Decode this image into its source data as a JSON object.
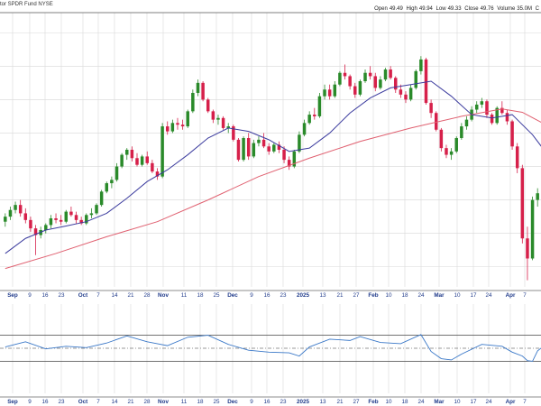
{
  "header": {
    "title": "tor SPDR Fund",
    "exchange": "NYSE",
    "open_label": "Open",
    "open_value": "49.49",
    "high_label": "High",
    "high_value": "49.94",
    "low_label": "Low",
    "low_value": "49.33",
    "close_label": "Close",
    "close_value": "49.76",
    "volume_label": "Volume",
    "volume_value": "35.0M",
    "cut_label": "C"
  },
  "colors": {
    "up": "#2a8a2a",
    "down": "#d6204a",
    "sma_fast": "#3b3b9e",
    "sma_slow": "#e06070",
    "rsi_line": "#3a78c8",
    "rsi_overbought_fill": "#3a78c8",
    "rsi_oversold_fill": "#e05078",
    "grid": "#d8d8d8",
    "axis_text": "#1f3a8a"
  },
  "chart_data": [
    {
      "type": "candlestick",
      "title": "",
      "ylim": [
        43.4,
        51.6
      ],
      "grid": true,
      "x_tick_labels": [
        "Sep",
        "9",
        "16",
        "23",
        "Oct",
        "7",
        "14",
        "21",
        "28",
        "Nov",
        "11",
        "18",
        "25",
        "Dec",
        "9",
        "16",
        "23",
        "2025",
        "13",
        "21",
        "27",
        "Feb",
        "10",
        "18",
        "24",
        "Mar",
        "10",
        "17",
        "24",
        "Apr",
        "7"
      ],
      "candles": [
        [
          45.35,
          45.6,
          45.2,
          45.5
        ],
        [
          45.5,
          45.8,
          45.4,
          45.7
        ],
        [
          45.7,
          45.95,
          45.6,
          45.85
        ],
        [
          45.85,
          46.0,
          45.5,
          45.6
        ],
        [
          45.6,
          45.75,
          45.3,
          45.4
        ],
        [
          45.4,
          45.5,
          45.05,
          45.15
        ],
        [
          45.15,
          45.25,
          44.35,
          44.95
        ],
        [
          44.95,
          45.2,
          44.85,
          45.1
        ],
        [
          45.1,
          45.3,
          45.0,
          45.25
        ],
        [
          45.25,
          45.55,
          45.15,
          45.45
        ],
        [
          45.45,
          45.6,
          45.3,
          45.4
        ],
        [
          45.4,
          45.55,
          45.25,
          45.35
        ],
        [
          45.35,
          45.7,
          45.3,
          45.65
        ],
        [
          45.65,
          45.8,
          45.5,
          45.55
        ],
        [
          45.55,
          45.65,
          45.3,
          45.4
        ],
        [
          45.4,
          45.5,
          45.25,
          45.3
        ],
        [
          45.3,
          45.6,
          45.25,
          45.55
        ],
        [
          45.55,
          45.75,
          45.45,
          45.6
        ],
        [
          45.6,
          45.9,
          45.55,
          45.85
        ],
        [
          45.85,
          46.3,
          45.8,
          46.25
        ],
        [
          46.25,
          46.55,
          46.2,
          46.5
        ],
        [
          46.5,
          46.7,
          46.35,
          46.6
        ],
        [
          46.6,
          47.1,
          46.55,
          47.0
        ],
        [
          47.0,
          47.4,
          46.95,
          47.35
        ],
        [
          47.35,
          47.55,
          47.2,
          47.5
        ],
        [
          47.5,
          47.6,
          47.15,
          47.25
        ],
        [
          47.25,
          47.4,
          47.0,
          47.05
        ],
        [
          47.05,
          47.35,
          47.0,
          47.3
        ],
        [
          47.3,
          47.45,
          47.05,
          47.1
        ],
        [
          47.1,
          47.2,
          46.8,
          46.85
        ],
        [
          46.85,
          46.95,
          46.6,
          46.7
        ],
        [
          46.7,
          48.3,
          46.65,
          48.2
        ],
        [
          48.2,
          48.35,
          47.95,
          48.05
        ],
        [
          48.05,
          48.4,
          48.0,
          48.3
        ],
        [
          48.3,
          48.45,
          48.1,
          48.25
        ],
        [
          48.25,
          48.4,
          48.1,
          48.2
        ],
        [
          48.2,
          48.7,
          48.15,
          48.65
        ],
        [
          48.65,
          49.3,
          48.6,
          49.2
        ],
        [
          49.2,
          49.6,
          49.1,
          49.5
        ],
        [
          49.5,
          49.55,
          48.95,
          49.0
        ],
        [
          49.0,
          49.05,
          48.6,
          48.65
        ],
        [
          48.65,
          48.7,
          48.3,
          48.4
        ],
        [
          48.4,
          48.55,
          48.25,
          48.45
        ],
        [
          48.45,
          48.5,
          48.1,
          48.15
        ],
        [
          48.15,
          48.3,
          48.0,
          48.2
        ],
        [
          48.2,
          48.25,
          47.75,
          47.8
        ],
        [
          47.8,
          47.85,
          47.15,
          47.2
        ],
        [
          47.2,
          47.9,
          47.15,
          47.85
        ],
        [
          47.85,
          48.0,
          47.2,
          47.3
        ],
        [
          47.3,
          47.8,
          47.25,
          47.7
        ],
        [
          47.7,
          47.9,
          47.6,
          47.8
        ],
        [
          47.8,
          48.0,
          47.55,
          47.6
        ],
        [
          47.6,
          47.7,
          47.35,
          47.45
        ],
        [
          47.45,
          47.7,
          47.4,
          47.65
        ],
        [
          47.65,
          47.75,
          47.4,
          47.5
        ],
        [
          47.5,
          47.6,
          47.1,
          47.2
        ],
        [
          47.2,
          47.3,
          46.9,
          47.0
        ],
        [
          47.0,
          47.5,
          46.95,
          47.45
        ],
        [
          47.45,
          48.05,
          47.4,
          47.95
        ],
        [
          47.95,
          48.4,
          47.9,
          48.3
        ],
        [
          48.3,
          48.65,
          48.25,
          48.55
        ],
        [
          48.55,
          48.75,
          48.4,
          48.5
        ],
        [
          48.5,
          49.2,
          48.45,
          49.1
        ],
        [
          49.1,
          49.45,
          49.0,
          49.3
        ],
        [
          49.3,
          49.45,
          49.0,
          49.1
        ],
        [
          49.1,
          49.55,
          49.05,
          49.45
        ],
        [
          49.45,
          49.85,
          49.4,
          49.8
        ],
        [
          49.8,
          50.05,
          49.6,
          49.7
        ],
        [
          49.7,
          49.75,
          49.3,
          49.4
        ],
        [
          49.4,
          49.5,
          49.05,
          49.15
        ],
        [
          49.15,
          49.6,
          49.1,
          49.55
        ],
        [
          49.55,
          49.9,
          49.5,
          49.8
        ],
        [
          49.8,
          50.0,
          49.6,
          49.7
        ],
        [
          49.7,
          49.8,
          49.25,
          49.35
        ],
        [
          49.35,
          49.7,
          49.3,
          49.6
        ],
        [
          49.6,
          49.95,
          49.55,
          49.9
        ],
        [
          49.9,
          50.0,
          49.6,
          49.65
        ],
        [
          49.65,
          49.7,
          49.2,
          49.3
        ],
        [
          49.3,
          49.45,
          49.05,
          49.15
        ],
        [
          49.15,
          49.25,
          48.9,
          49.0
        ],
        [
          49.0,
          49.45,
          48.95,
          49.35
        ],
        [
          49.35,
          49.9,
          49.3,
          49.85
        ],
        [
          49.85,
          50.3,
          49.75,
          50.2
        ],
        [
          50.2,
          50.25,
          48.85,
          48.9
        ],
        [
          48.9,
          49.0,
          48.45,
          48.6
        ],
        [
          48.6,
          48.65,
          48.05,
          48.1
        ],
        [
          48.1,
          48.15,
          47.45,
          47.55
        ],
        [
          47.55,
          47.65,
          47.25,
          47.35
        ],
        [
          47.35,
          47.55,
          47.2,
          47.45
        ],
        [
          47.45,
          47.9,
          47.4,
          47.85
        ],
        [
          47.85,
          48.3,
          47.8,
          48.2
        ],
        [
          48.2,
          48.5,
          48.1,
          48.4
        ],
        [
          48.4,
          48.8,
          48.35,
          48.7
        ],
        [
          48.7,
          48.95,
          48.6,
          48.85
        ],
        [
          48.85,
          49.05,
          48.75,
          48.95
        ],
        [
          48.95,
          49.0,
          48.45,
          48.55
        ],
        [
          48.55,
          48.6,
          48.25,
          48.3
        ],
        [
          48.3,
          48.8,
          48.25,
          48.75
        ],
        [
          48.75,
          48.95,
          48.55,
          48.6
        ],
        [
          48.6,
          48.7,
          48.25,
          48.35
        ],
        [
          48.35,
          48.4,
          47.5,
          47.6
        ],
        [
          47.6,
          47.7,
          46.8,
          46.95
        ],
        [
          46.95,
          47.05,
          44.7,
          44.85
        ],
        [
          44.85,
          45.2,
          43.6,
          44.25
        ],
        [
          44.25,
          46.1,
          44.2,
          46.0
        ],
        [
          46.0,
          46.35,
          45.8,
          46.2
        ]
      ],
      "sma_fast": [
        [
          0,
          44.4
        ],
        [
          4,
          44.85
        ],
        [
          8,
          45.1
        ],
        [
          12,
          45.22
        ],
        [
          16,
          45.35
        ],
        [
          20,
          45.6
        ],
        [
          24,
          46.05
        ],
        [
          28,
          46.55
        ],
        [
          32,
          46.9
        ],
        [
          36,
          47.35
        ],
        [
          40,
          47.85
        ],
        [
          44,
          48.15
        ],
        [
          48,
          48.05
        ],
        [
          52,
          47.8
        ],
        [
          56,
          47.45
        ],
        [
          60,
          47.55
        ],
        [
          64,
          48.0
        ],
        [
          68,
          48.6
        ],
        [
          72,
          49.05
        ],
        [
          76,
          49.35
        ],
        [
          80,
          49.45
        ],
        [
          84,
          49.55
        ],
        [
          88,
          49.1
        ],
        [
          92,
          48.55
        ],
        [
          96,
          48.45
        ],
        [
          100,
          48.55
        ],
        [
          104,
          47.95
        ],
        [
          106,
          47.55
        ]
      ],
      "sma_slow": [
        [
          0,
          43.95
        ],
        [
          10,
          44.4
        ],
        [
          20,
          44.9
        ],
        [
          30,
          45.35
        ],
        [
          40,
          46.0
        ],
        [
          50,
          46.7
        ],
        [
          60,
          47.25
        ],
        [
          70,
          47.75
        ],
        [
          80,
          48.15
        ],
        [
          90,
          48.5
        ],
        [
          98,
          48.72
        ],
        [
          102,
          48.62
        ],
        [
          106,
          48.3
        ]
      ]
    },
    {
      "type": "line",
      "title": "",
      "ylim": [
        0,
        100
      ],
      "reference_lines": [
        70,
        50,
        30
      ],
      "x_tick_labels": [
        "Sep",
        "9",
        "16",
        "23",
        "Oct",
        "7",
        "14",
        "21",
        "28",
        "Nov",
        "11",
        "18",
        "25",
        "Dec",
        "9",
        "16",
        "23",
        "2025",
        "13",
        "21",
        "27",
        "Feb",
        "10",
        "18",
        "24",
        "Mar",
        "10",
        "17",
        "24",
        "Apr",
        "7"
      ],
      "rsi": [
        [
          0,
          52
        ],
        [
          4,
          60
        ],
        [
          8,
          49
        ],
        [
          12,
          53
        ],
        [
          16,
          51
        ],
        [
          20,
          58
        ],
        [
          24,
          69
        ],
        [
          28,
          60
        ],
        [
          32,
          54
        ],
        [
          36,
          67
        ],
        [
          40,
          70
        ],
        [
          44,
          56
        ],
        [
          48,
          47
        ],
        [
          52,
          44
        ],
        [
          56,
          43
        ],
        [
          58,
          38
        ],
        [
          60,
          52
        ],
        [
          64,
          64
        ],
        [
          68,
          62
        ],
        [
          70,
          68
        ],
        [
          74,
          59
        ],
        [
          78,
          57
        ],
        [
          82,
          71
        ],
        [
          84,
          45
        ],
        [
          86,
          34
        ],
        [
          88,
          32
        ],
        [
          90,
          41
        ],
        [
          94,
          56
        ],
        [
          98,
          53
        ],
        [
          100,
          44
        ],
        [
          102,
          38
        ],
        [
          103,
          31
        ],
        [
          104,
          30
        ],
        [
          105,
          46
        ],
        [
          106,
          52
        ]
      ]
    }
  ]
}
